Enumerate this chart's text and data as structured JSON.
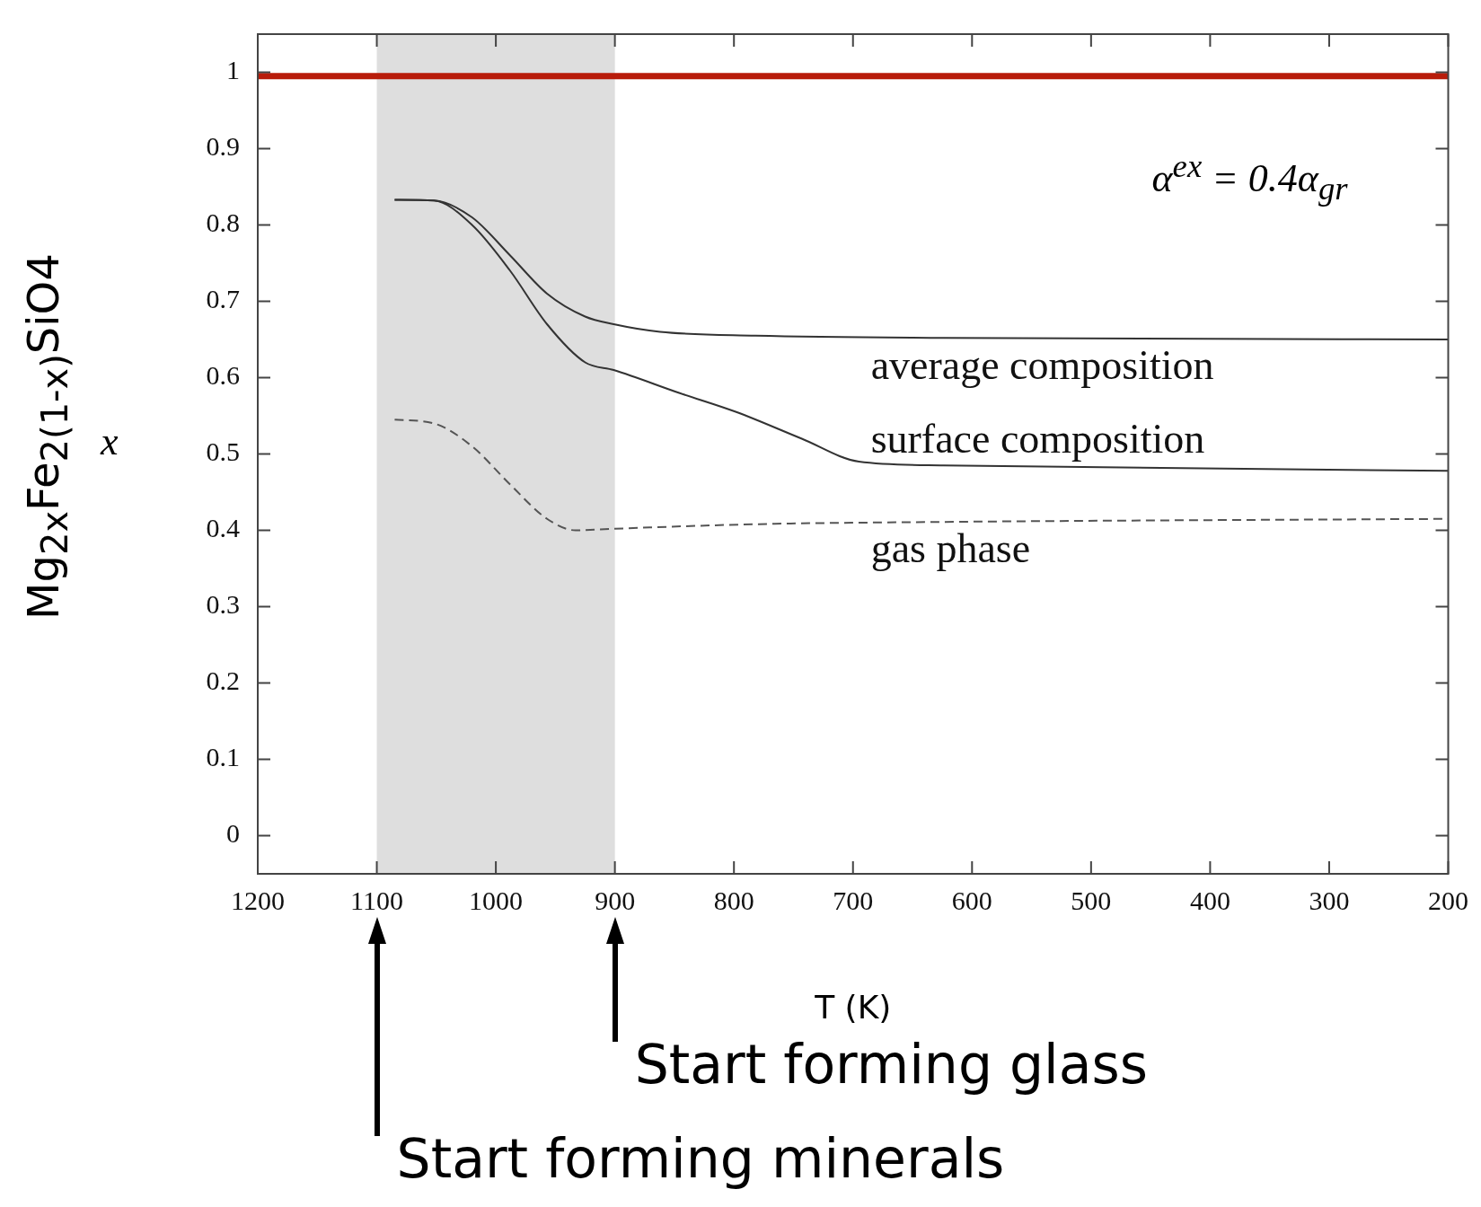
{
  "chart_data": {
    "type": "line",
    "xlabel": "T (K)",
    "ylabel": "Mg$_{2x}$Fe$_{2(1-x)}$SiO4",
    "xlim": [
      1200,
      200
    ],
    "xticks": [
      1200,
      1100,
      1000,
      900,
      800,
      700,
      600,
      500,
      400,
      300,
      200
    ],
    "ylim": [
      -0.05,
      1.05
    ],
    "yticks": [
      0,
      0.1,
      0.2,
      0.3,
      0.4,
      0.5,
      0.6,
      0.7,
      0.8,
      0.9,
      1
    ],
    "grid": false,
    "legend": false,
    "marker": "none",
    "series": [
      {
        "name": "average composition",
        "color": "#333333",
        "line_style": "solid",
        "x": [
          1085,
          1052,
          1020,
          988,
          957,
          925,
          901,
          862,
          782,
          624,
          200
        ],
        "values": [
          0.833,
          0.832,
          0.81,
          0.76,
          0.71,
          0.68,
          0.67,
          0.66,
          0.655,
          0.652,
          0.65
        ]
      },
      {
        "name": "surface composition",
        "color": "#333333",
        "line_style": "solid",
        "x": [
          1085,
          1052,
          1020,
          988,
          957,
          925,
          901,
          846,
          798,
          743,
          695,
          624,
          200
        ],
        "values": [
          0.833,
          0.832,
          0.8,
          0.74,
          0.67,
          0.62,
          0.61,
          0.58,
          0.555,
          0.52,
          0.49,
          0.485,
          0.478
        ]
      },
      {
        "name": "gas phase",
        "color": "#555555",
        "line_style": "dashed",
        "x": [
          1085,
          1052,
          1020,
          988,
          957,
          933,
          901,
          782,
          624,
          200
        ],
        "values": [
          0.545,
          0.54,
          0.51,
          0.46,
          0.415,
          0.4,
          0.402,
          0.408,
          0.411,
          0.415
        ]
      }
    ],
    "ref_lines": [
      {
        "axis": "y",
        "value": 0.995,
        "color": "#b81c0a"
      }
    ],
    "bands": [
      {
        "axis": "x",
        "from": 1100,
        "to": 900,
        "color": "#dedede"
      }
    ],
    "annotations": [
      "α$^{ex}$ = 0.4α$_{gr}$",
      "x",
      "Start forming minerals",
      "Start forming glass"
    ]
  }
}
